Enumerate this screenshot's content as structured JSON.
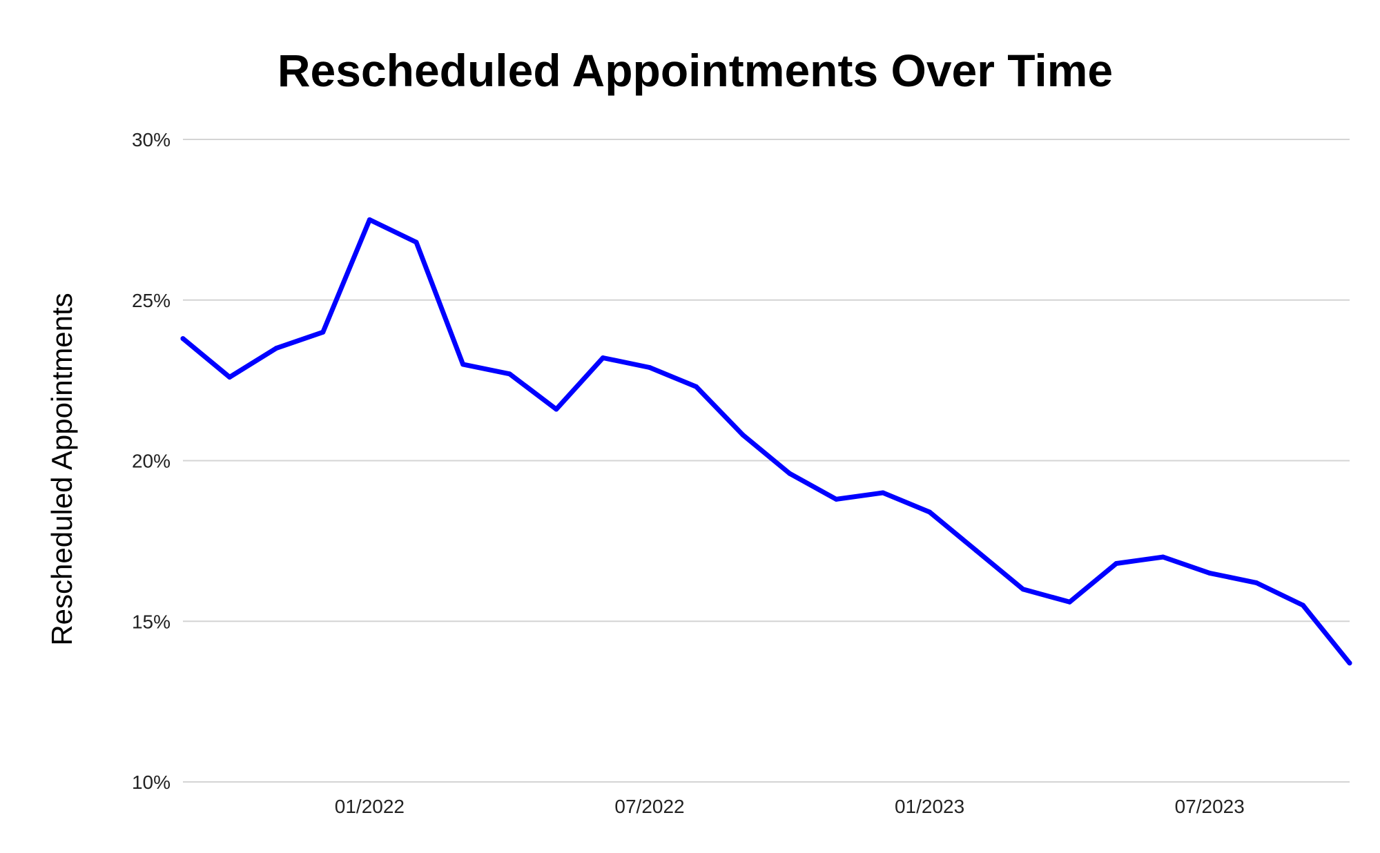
{
  "chart_data": {
    "type": "line",
    "title": "Rescheduled Appointments Over Time",
    "xlabel": "",
    "ylabel": "Rescheduled Appointments",
    "ylim": [
      0.1,
      0.3
    ],
    "y_ticks": [
      0.1,
      0.15,
      0.2,
      0.25,
      0.3
    ],
    "y_tick_labels": [
      "10%",
      "15%",
      "20%",
      "25%",
      "30%"
    ],
    "x_tick_labels": [
      "01/2022",
      "07/2022",
      "01/2023",
      "07/2023"
    ],
    "x_tick_positions": [
      "2022-01",
      "2022-07",
      "2023-01",
      "2023-07"
    ],
    "grid": true,
    "legend": "none",
    "series": [
      {
        "color": "#0000ff",
        "x": [
          "2021-09",
          "2021-10",
          "2021-11",
          "2021-12",
          "2022-01",
          "2022-02",
          "2022-03",
          "2022-04",
          "2022-05",
          "2022-06",
          "2022-07",
          "2022-08",
          "2022-09",
          "2022-10",
          "2022-11",
          "2022-12",
          "2023-01",
          "2023-02",
          "2023-03",
          "2023-04",
          "2023-05",
          "2023-06",
          "2023-07",
          "2023-08",
          "2023-09",
          "2023-10"
        ],
        "values": [
          0.238,
          0.226,
          0.235,
          0.24,
          0.275,
          0.268,
          0.23,
          0.227,
          0.216,
          0.232,
          0.229,
          0.223,
          0.208,
          0.196,
          0.188,
          0.19,
          0.184,
          0.172,
          0.16,
          0.156,
          0.168,
          0.17,
          0.165,
          0.162,
          0.155,
          0.137
        ]
      }
    ]
  }
}
